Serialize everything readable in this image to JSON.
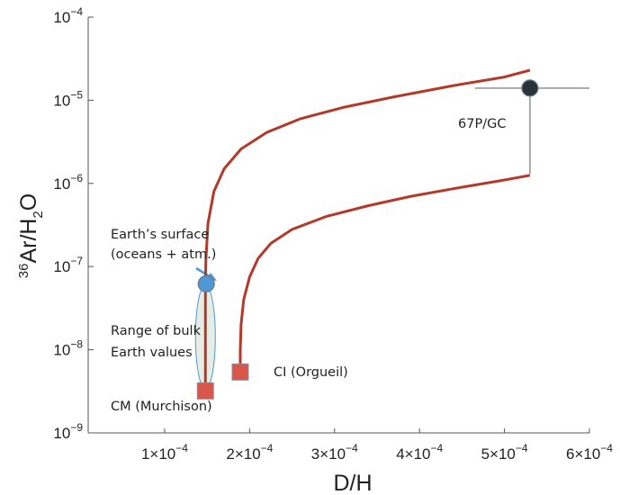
{
  "chart_data": {
    "type": "scatter",
    "xlabel": "D/H",
    "ylabel": {
      "sup": "36",
      "main": "Ar/H",
      "sub": "2",
      "tail": "O"
    },
    "xscale": "linear",
    "yscale": "log",
    "xlim": [
      1e-05,
      0.0006
    ],
    "ylim": [
      1e-09,
      0.0001
    ],
    "x_ticks": [
      {
        "value": 0.0001,
        "mant": "1×10",
        "exp": "−4"
      },
      {
        "value": 0.0002,
        "mant": "2×10",
        "exp": "−4"
      },
      {
        "value": 0.0003,
        "mant": "3×10",
        "exp": "−4"
      },
      {
        "value": 0.0004,
        "mant": "4×10",
        "exp": "−4"
      },
      {
        "value": 0.0005,
        "mant": "5×10",
        "exp": "−4"
      },
      {
        "value": 0.0006,
        "mant": "6×10",
        "exp": "−4"
      }
    ],
    "y_ticks": [
      {
        "value": 0.0001,
        "mant": "10",
        "exp": "−4"
      },
      {
        "value": 1e-05,
        "mant": "10",
        "exp": "−5"
      },
      {
        "value": 1e-06,
        "mant": "10",
        "exp": "−6"
      },
      {
        "value": 1e-07,
        "mant": "10",
        "exp": "−7"
      },
      {
        "value": 1e-08,
        "mant": "10",
        "exp": "−8"
      },
      {
        "value": 1e-09,
        "mant": "10",
        "exp": "−9"
      }
    ],
    "points": [
      {
        "name": "67P/GC",
        "x": 0.00053,
        "y": 1.4e-05,
        "marker": "circle",
        "color": "#2b3238"
      },
      {
        "name": "Earth's surface",
        "x": 0.000149,
        "y": 6.2e-08,
        "marker": "circle",
        "color": "#4f97d6"
      },
      {
        "name": "CM (Murchison)",
        "x": 0.000148,
        "y": 3.2e-09,
        "marker": "square",
        "color": "#d9574a"
      },
      {
        "name": "CI (Orgueil)",
        "x": 0.000189,
        "y": 5.4e-09,
        "marker": "square",
        "color": "#d9574a"
      }
    ],
    "error_bar_67P": {
      "x_range": [
        0.000465,
        0.0006
      ],
      "y_range": [
        1.3e-06,
        1.4e-05
      ]
    },
    "bulk_earth_range": {
      "x": 0.000148,
      "y_range": [
        3.4e-09,
        6e-08
      ]
    },
    "curves": [
      {
        "name": "upper mixing curve",
        "color": "#b33a2a",
        "x": [
          0.000148,
          0.000148,
          0.0001485,
          0.000151,
          0.000158,
          0.00017,
          0.00019,
          0.00022,
          0.00026,
          0.00031,
          0.00037,
          0.00044,
          0.0005,
          0.00053
        ],
        "y": [
          3.2e-09,
          6.2e-08,
          1.2e-07,
          3.3e-07,
          8e-07,
          1.5e-06,
          2.6e-06,
          4.1e-06,
          6e-06,
          8.2e-06,
          1.1e-05,
          1.5e-05,
          1.9e-05,
          2.3e-05
        ]
      },
      {
        "name": "lower mixing curve",
        "color": "#b33a2a",
        "x": [
          0.000189,
          0.000189,
          0.00019,
          0.000193,
          0.0002,
          0.00021,
          0.000225,
          0.00025,
          0.00029,
          0.00034,
          0.00039,
          0.00045,
          0.0005,
          0.00053
        ],
        "y": [
          5.4e-09,
          1e-08,
          2e-08,
          4e-08,
          7.5e-08,
          1.25e-07,
          1.9e-07,
          2.8e-07,
          4e-07,
          5.4e-07,
          7e-07,
          9e-07,
          1.1e-06,
          1.25e-06
        ]
      }
    ],
    "annotations": {
      "comet": "67P/GC",
      "earth_line1": "Earth’s surface",
      "earth_line2": "(oceans + atm.)",
      "bulk_line1": "Range of bulk",
      "bulk_line2": "Earth values",
      "cm": "CM (Murchison)",
      "ci": "CI (Orgueil)"
    },
    "colors": {
      "axis": "#555555",
      "curve": "#b33a2a",
      "errorbar": "#aaaaaa",
      "arrow": "#4f97d6",
      "ellipse_fill": "#e6ede4",
      "ellipse_stroke": "#4f97d6"
    }
  }
}
